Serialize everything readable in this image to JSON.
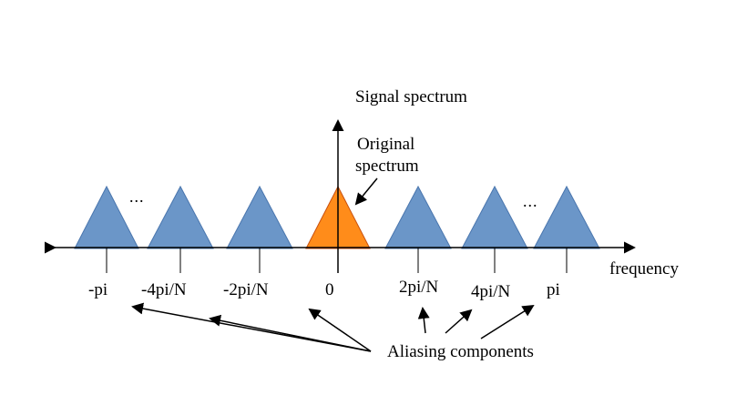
{
  "title": "Signal spectrum",
  "original_label": {
    "line1": "Original",
    "line2": "spectrum"
  },
  "axis_label": "frequency",
  "ellipsis": "...",
  "aliasing_label": "Aliasing components",
  "tick_labels": [
    "-pi",
    "-4pi/N",
    "-2pi/N",
    "0",
    "2pi/N",
    "4pi/N",
    "pi"
  ],
  "colors": {
    "aliasing_fill": "#6B96C8",
    "aliasing_stroke": "#4A76AE",
    "original_fill": "#FF8C1A",
    "original_stroke": "#C8500F",
    "axis": "#000000"
  }
}
